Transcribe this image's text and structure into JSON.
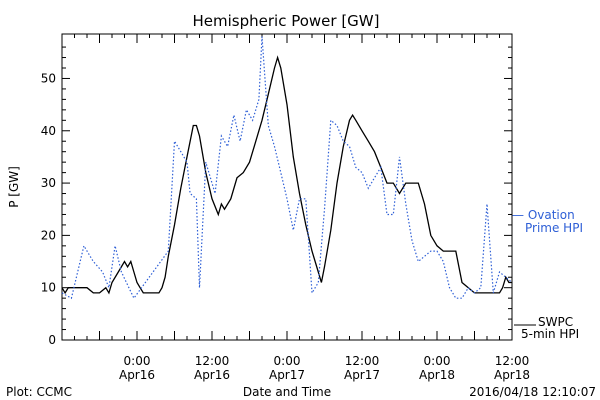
{
  "chart_data": {
    "type": "line",
    "title": "Hemispheric Power [GW]",
    "ylabel": "P [GW]",
    "xlabel": "Date and Time",
    "ylim": [
      0,
      60
    ],
    "xlim_hours": [
      0,
      72
    ],
    "y_ticks": [
      0,
      10,
      20,
      30,
      40,
      50
    ],
    "x_ticks": [
      {
        "t": 12,
        "line1": "0:00",
        "line2": "Apr16"
      },
      {
        "t": 24,
        "line1": "12:00",
        "line2": "Apr16"
      },
      {
        "t": 36,
        "line1": "0:00",
        "line2": "Apr17"
      },
      {
        "t": 48,
        "line1": "12:00",
        "line2": "Apr17"
      },
      {
        "t": 60,
        "line1": "0:00",
        "line2": "Apr18"
      },
      {
        "t": 72,
        "line1": "12:00",
        "line2": "Apr18"
      }
    ],
    "grid": false,
    "series": [
      {
        "name": "SWPC 5-min HPI",
        "legend_line1": "SWPC",
        "legend_line2": "5-min HPI",
        "color": "#000000",
        "style": "solid",
        "points": [
          [
            0,
            10
          ],
          [
            0.5,
            9
          ],
          [
            1,
            10
          ],
          [
            2,
            10
          ],
          [
            4,
            10
          ],
          [
            5,
            9
          ],
          [
            6,
            9
          ],
          [
            7,
            10
          ],
          [
            7.5,
            9
          ],
          [
            8,
            11
          ],
          [
            9,
            13
          ],
          [
            10,
            15
          ],
          [
            10.5,
            14
          ],
          [
            11,
            15
          ],
          [
            11.5,
            13
          ],
          [
            12,
            11
          ],
          [
            12.5,
            10
          ],
          [
            13,
            9
          ],
          [
            14,
            9
          ],
          [
            15,
            9
          ],
          [
            15.5,
            9
          ],
          [
            16,
            10
          ],
          [
            16.5,
            12
          ],
          [
            17,
            16
          ],
          [
            18,
            22
          ],
          [
            19,
            29
          ],
          [
            20,
            35
          ],
          [
            21,
            41
          ],
          [
            21.5,
            41
          ],
          [
            22,
            39
          ],
          [
            23,
            32
          ],
          [
            24,
            27
          ],
          [
            25,
            24
          ],
          [
            25.5,
            26
          ],
          [
            26,
            25
          ],
          [
            27,
            27
          ],
          [
            28,
            31
          ],
          [
            29,
            32
          ],
          [
            30,
            34
          ],
          [
            31,
            38
          ],
          [
            32,
            42
          ],
          [
            33,
            47
          ],
          [
            34,
            52
          ],
          [
            34.5,
            54
          ],
          [
            35,
            52
          ],
          [
            36,
            45
          ],
          [
            37,
            35
          ],
          [
            38,
            28
          ],
          [
            39,
            22
          ],
          [
            40,
            17
          ],
          [
            41,
            13
          ],
          [
            41.5,
            11
          ],
          [
            42,
            14
          ],
          [
            43,
            21
          ],
          [
            44,
            30
          ],
          [
            45,
            37
          ],
          [
            46,
            42
          ],
          [
            46.5,
            43
          ],
          [
            47,
            42
          ],
          [
            48,
            40
          ],
          [
            49,
            38
          ],
          [
            50,
            36
          ],
          [
            51,
            33
          ],
          [
            52,
            30
          ],
          [
            53,
            30
          ],
          [
            54,
            28
          ],
          [
            55,
            30
          ],
          [
            56,
            30
          ],
          [
            57,
            30
          ],
          [
            58,
            26
          ],
          [
            59,
            20
          ],
          [
            60,
            18
          ],
          [
            61,
            17
          ],
          [
            62,
            17
          ],
          [
            63,
            17
          ],
          [
            64,
            11
          ],
          [
            65,
            10
          ],
          [
            66,
            9
          ],
          [
            67,
            9
          ],
          [
            68,
            9
          ],
          [
            69,
            9
          ],
          [
            70,
            9
          ],
          [
            70.5,
            10
          ],
          [
            71,
            12
          ],
          [
            71.5,
            11
          ],
          [
            72,
            11
          ]
        ]
      },
      {
        "name": "Ovation Prime HPI",
        "legend_line1": "Ovation",
        "legend_line2": "Prime HPI",
        "color": "#2e5fd6",
        "style": "dotted",
        "points": [
          [
            0,
            9
          ],
          [
            1.5,
            8
          ],
          [
            3.5,
            18
          ],
          [
            5,
            15
          ],
          [
            6.5,
            13
          ],
          [
            7.5,
            10
          ],
          [
            8.5,
            18
          ],
          [
            9.5,
            13
          ],
          [
            11.5,
            8
          ],
          [
            17,
            17
          ],
          [
            18,
            38
          ],
          [
            19,
            36
          ],
          [
            20,
            34
          ],
          [
            20.5,
            28
          ],
          [
            21.5,
            27
          ],
          [
            22,
            10
          ],
          [
            23,
            34
          ],
          [
            24.5,
            28
          ],
          [
            25.5,
            39
          ],
          [
            26.5,
            37
          ],
          [
            27.5,
            43
          ],
          [
            28.5,
            38
          ],
          [
            29.5,
            44
          ],
          [
            30.5,
            42
          ],
          [
            31.5,
            46
          ],
          [
            32,
            58
          ],
          [
            33,
            41
          ],
          [
            34,
            37
          ],
          [
            35,
            32
          ],
          [
            36,
            27
          ],
          [
            37,
            21
          ],
          [
            38,
            27
          ],
          [
            39,
            27
          ],
          [
            40,
            9
          ],
          [
            41,
            11
          ],
          [
            42,
            25
          ],
          [
            43,
            42
          ],
          [
            44,
            41
          ],
          [
            45,
            38
          ],
          [
            46,
            37
          ],
          [
            47,
            33
          ],
          [
            48,
            32
          ],
          [
            49,
            29
          ],
          [
            50,
            31
          ],
          [
            51,
            33
          ],
          [
            52,
            24
          ],
          [
            53,
            24
          ],
          [
            54,
            35
          ],
          [
            55,
            26
          ],
          [
            56,
            19
          ],
          [
            57,
            15
          ],
          [
            58,
            16
          ],
          [
            59,
            17
          ],
          [
            60,
            17
          ],
          [
            61,
            15
          ],
          [
            62,
            10
          ],
          [
            63,
            8
          ],
          [
            64,
            8
          ],
          [
            65,
            10
          ],
          [
            66,
            9
          ],
          [
            67,
            10
          ],
          [
            68,
            26
          ],
          [
            69,
            9
          ],
          [
            70,
            13
          ],
          [
            71,
            12
          ],
          [
            72,
            11
          ]
        ]
      }
    ]
  },
  "footer": {
    "left": "Plot: CCMC",
    "center": "Date and Time",
    "right": "2016/04/18 12:10:07"
  },
  "legend": {
    "ovation_line1": "— Ovation",
    "ovation_line2": "Prime HPI",
    "swpc_line1": "SWPC",
    "swpc_line2": "5-min HPI"
  }
}
